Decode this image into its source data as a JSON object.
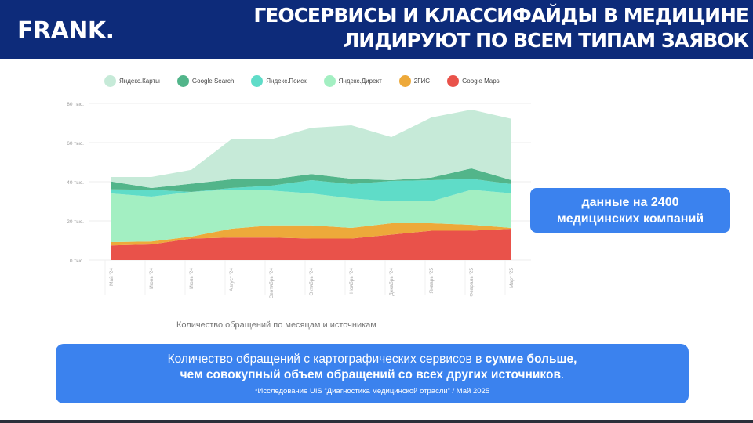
{
  "header": {
    "logo": "FRANK.",
    "title_line1": "ГЕОСЕРВИСЫ  И КЛАССИФАЙДЫ  В МЕДИЦИНЕ",
    "title_line2": "ЛИДИРУЮТ ПО ВСЕМ ТИПАМ ЗАЯВОК"
  },
  "badge": {
    "line1": "данные на 2400",
    "line2": "медицинских компаний"
  },
  "summary": {
    "line1_regular": "Количество обращений с картографических сервисов в ",
    "line1_bold": "сумме больше,",
    "line2_bold": "чем совокупный объем обращений со всех  других источников",
    "line2_end": ".",
    "footnote": "*Исследование UIS  “Диагностика медицинской отрасли” /  Май 2025"
  },
  "colors": {
    "header": "#0d2b7a",
    "accent": "#3b82ee"
  },
  "chart_data": {
    "type": "area",
    "stacked": true,
    "title": "Количество обращений по месяцам и источникам",
    "xlabel": "",
    "ylabel": "",
    "ylim": [
      0,
      80
    ],
    "yticks": [
      {
        "v": 0,
        "label": "0 тыс."
      },
      {
        "v": 20,
        "label": "20 тыс."
      },
      {
        "v": 40,
        "label": "40 тыс."
      },
      {
        "v": 60,
        "label": "60 тыс."
      },
      {
        "v": 80,
        "label": "80 тыс."
      }
    ],
    "legend_position": "top",
    "grid": true,
    "categories": [
      "Май '24",
      "Июнь '24",
      "Июль '24",
      "Август '24",
      "Сентябрь '24",
      "Октябрь '24",
      "Ноябрь '24",
      "Декабрь '24",
      "Январь '25",
      "Февраль '25",
      "Март '25"
    ],
    "series": [
      {
        "name": "Google Maps",
        "color": "#e9524a",
        "values": [
          7.5,
          8,
          11,
          11.5,
          11.5,
          11,
          11,
          13,
          15,
          15,
          16
        ]
      },
      {
        "name": "2ГИС",
        "color": "#eda93a",
        "values": [
          1.7,
          1.5,
          1,
          4.5,
          6.2,
          6.7,
          5.4,
          5.8,
          3.8,
          3,
          0.4
        ]
      },
      {
        "name": "Яндекс.Директ",
        "color": "#a3efc2",
        "values": [
          24.8,
          22.9,
          22.8,
          20,
          17.8,
          16.3,
          15.1,
          11.2,
          11.2,
          17.9,
          17.7
        ]
      },
      {
        "name": "Яндекс.Поиск",
        "color": "#5fdcc8",
        "values": [
          2.1,
          3.5,
          0,
          0.8,
          2.5,
          6.8,
          7.3,
          10.4,
          10.8,
          5.6,
          4.7
        ]
      },
      {
        "name": "Google Search",
        "color": "#52b58a",
        "values": [
          4,
          0.9,
          4.2,
          4.4,
          3.2,
          3.1,
          2.7,
          0.4,
          1.3,
          5.3,
          2
        ]
      },
      {
        "name": "Яндекс.Карты",
        "color": "#c6ead8",
        "values": [
          2.3,
          5.6,
          7.1,
          20.5,
          20.5,
          23.6,
          27.3,
          22,
          30.7,
          30,
          31.3
        ]
      }
    ],
    "legend_order": [
      "Яндекс.Карты",
      "Google Search",
      "Яндекс.Поиск",
      "Яндекс.Директ",
      "2ГИС",
      "Google Maps"
    ]
  }
}
